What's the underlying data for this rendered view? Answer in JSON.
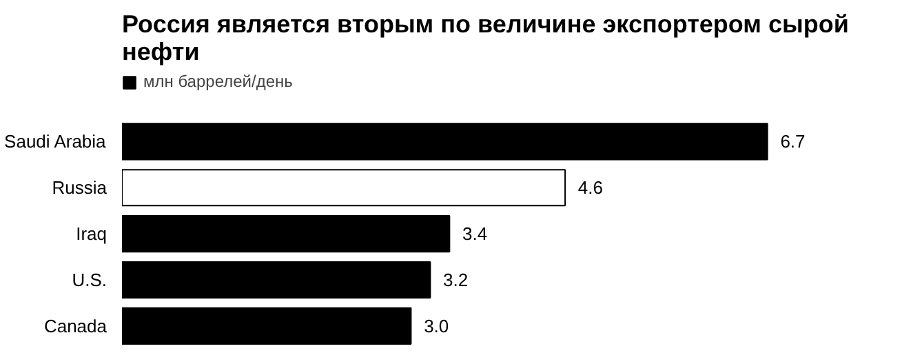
{
  "chart_data": {
    "type": "bar",
    "orientation": "horizontal",
    "title": "Россия является вторым по величине экспортером сырой нефти",
    "categories": [
      "Saudi Arabia",
      "Russia",
      "Iraq",
      "U.S.",
      "Canada"
    ],
    "series": [
      {
        "name": "млн баррелей/день",
        "colors": [
          "#000000",
          "#ffffff",
          "#000000",
          "#000000",
          "#000000"
        ],
        "values": [
          6.7,
          4.6,
          3.4,
          3.2,
          3.0
        ],
        "value_labels": [
          "6.7",
          "4.6",
          "3.4",
          "3.2",
          "3.0"
        ]
      }
    ],
    "legend": "top left"
  }
}
